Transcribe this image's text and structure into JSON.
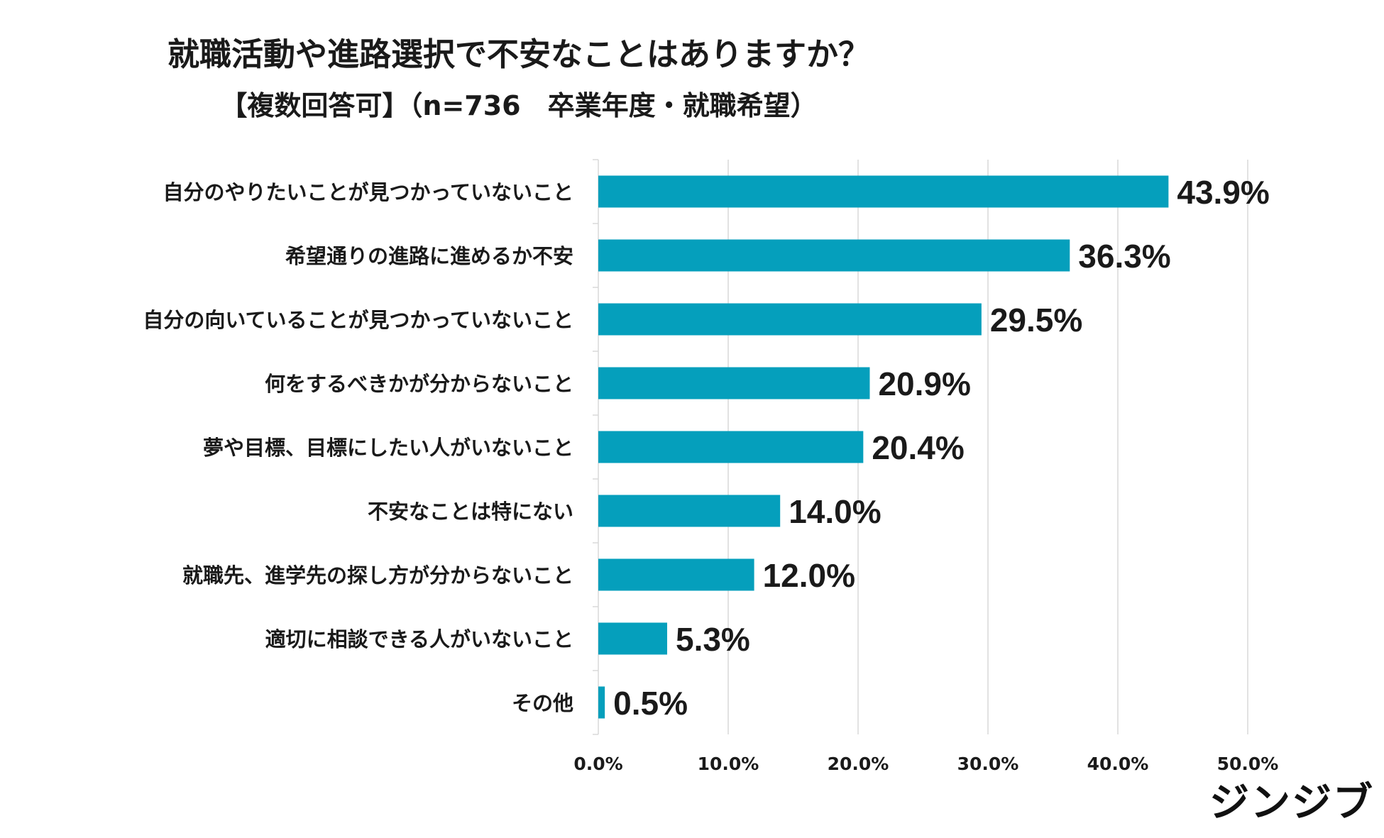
{
  "chart_data": {
    "type": "bar",
    "orientation": "horizontal",
    "title": "就職活動や進路選択で不安なことはありますか？",
    "subtitle": "【複数回答可】（n=736　卒業年度・就職希望）",
    "categories": [
      "自分のやりたいことが見つかっていないこと",
      "希望通りの進路に進めるか不安",
      "自分の向いていることが見つかっていないこと",
      "何をするべきかが分からないこと",
      "夢や目標、目標にしたい人がいないこと",
      "不安なことは特にない",
      "就職先、進学先の探し方が分からないこと",
      "適切に相談できる人がいないこと",
      "その他"
    ],
    "values": [
      43.9,
      36.3,
      29.5,
      20.9,
      20.4,
      14.0,
      12.0,
      5.3,
      0.5
    ],
    "value_labels": [
      "43.9%",
      "36.3%",
      "29.5%",
      "20.9%",
      "20.4%",
      "14.0%",
      "12.0%",
      "5.3%",
      "0.5%"
    ],
    "xlim": [
      0,
      50
    ],
    "xticks": [
      0,
      10,
      20,
      30,
      40,
      50
    ],
    "xtick_labels": [
      "0.0%",
      "10.0%",
      "20.0%",
      "30.0%",
      "40.0%",
      "50.0%"
    ],
    "xlabel": "",
    "ylabel": "",
    "grid": true,
    "bar_color": "#059fbc",
    "grid_color": "#d9d9d9"
  },
  "brand": {
    "logo_text": "ジンジブ"
  }
}
